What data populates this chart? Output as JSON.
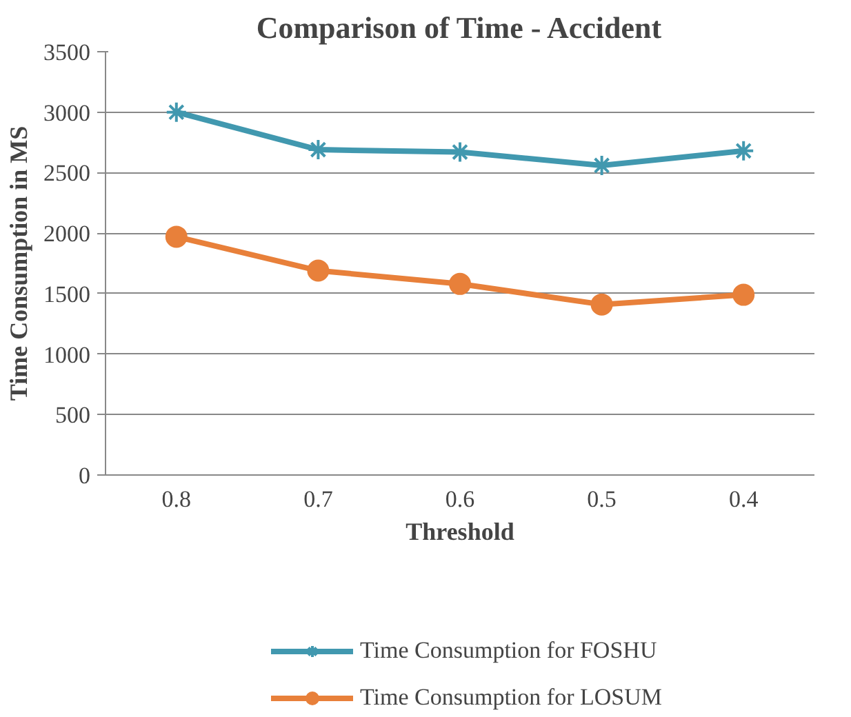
{
  "chart_data": {
    "type": "line",
    "title": "Comparison of Time - Accident",
    "xlabel": "Threshold",
    "ylabel": "Time Consumption in MS",
    "categories": [
      "0.8",
      "0.7",
      "0.6",
      "0.5",
      "0.4"
    ],
    "series": [
      {
        "name": "Time Consumption for FOSHU",
        "color": "#4198af",
        "marker": "cross",
        "values": [
          3000,
          2690,
          2670,
          2560,
          2680
        ]
      },
      {
        "name": "Time Consumption for LOSUM",
        "color": "#e8803a",
        "marker": "circle",
        "values": [
          1970,
          1690,
          1580,
          1410,
          1490
        ]
      }
    ],
    "ylim": [
      0,
      3500
    ],
    "yticks": [
      0,
      500,
      1000,
      1500,
      2000,
      2500,
      3000,
      3500
    ],
    "grid": "y",
    "legend": "bottom",
    "line_style": "solid"
  }
}
